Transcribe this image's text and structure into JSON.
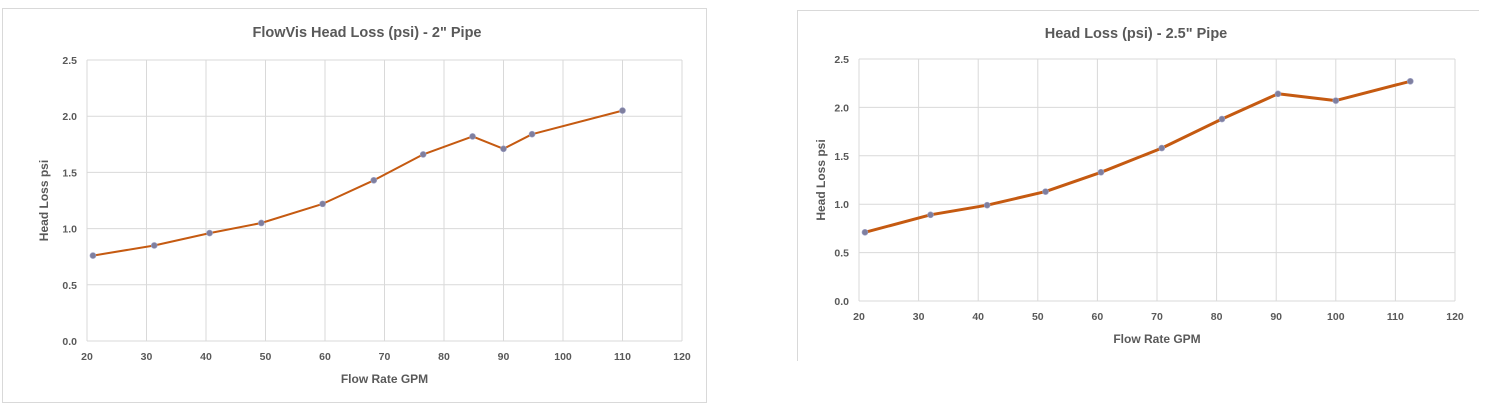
{
  "chart_data": [
    {
      "type": "line",
      "title": "FlowVis Head Loss  (psi) - 2\" Pipe",
      "xlabel": "Flow Rate GPM",
      "ylabel": "Head Loss psi",
      "xlim": [
        20,
        120
      ],
      "ylim": [
        0,
        2.5
      ],
      "xticks": [
        20,
        30,
        40,
        50,
        60,
        70,
        80,
        90,
        100,
        110,
        120
      ],
      "yticks": [
        "0.0",
        "0.5",
        "1.0",
        "1.5",
        "2.0",
        "2.5"
      ],
      "grid": true,
      "line_color": "#c55a11",
      "marker_color": "#7f7f9f",
      "series": [
        {
          "x": [
            21,
            31.3,
            40.6,
            49.3,
            59.6,
            68.2,
            76.5,
            84.8,
            90,
            94.8,
            110
          ],
          "y": [
            0.76,
            0.85,
            0.96,
            1.05,
            1.22,
            1.43,
            1.66,
            1.82,
            1.71,
            1.84,
            2.05
          ]
        }
      ]
    },
    {
      "type": "line",
      "title": "Head Loss (psi) - 2.5\" Pipe",
      "xlabel": "Flow Rate GPM",
      "ylabel": "Head Loss psi",
      "xlim": [
        20,
        120
      ],
      "ylim": [
        0,
        2.5
      ],
      "xticks": [
        20,
        30,
        40,
        50,
        60,
        70,
        80,
        90,
        100,
        110,
        120
      ],
      "yticks": [
        "0.0",
        "0.5",
        "1.0",
        "1.5",
        "2.0",
        "2.5"
      ],
      "grid": true,
      "line_color": "#c55a11",
      "marker_color": "#7f7f9f",
      "series": [
        {
          "x": [
            21,
            32,
            41.5,
            51.3,
            60.6,
            70.8,
            80.9,
            90.3,
            100,
            112.5
          ],
          "y": [
            0.71,
            0.89,
            0.99,
            1.13,
            1.33,
            1.58,
            1.88,
            2.14,
            2.07,
            2.27
          ]
        }
      ]
    }
  ]
}
